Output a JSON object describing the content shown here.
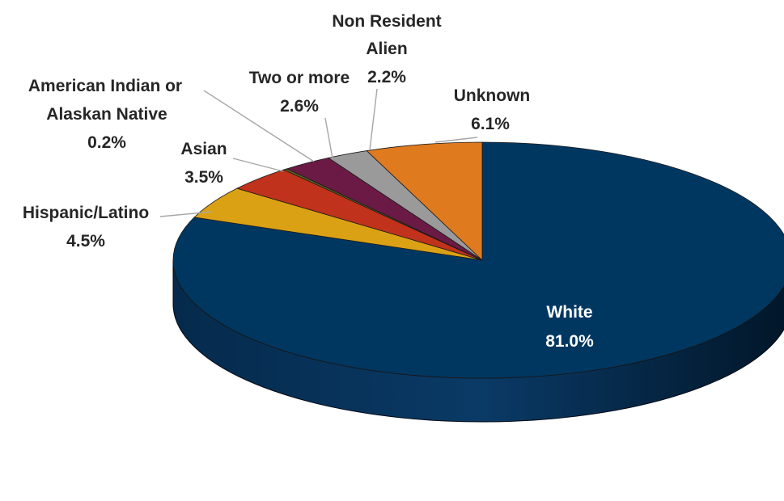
{
  "chart_data": {
    "type": "pie",
    "style": "3d",
    "start": "12 o'clock",
    "direction": "clockwise",
    "slices": [
      {
        "name": "White",
        "value": 81.0,
        "label": "White",
        "value_label": "81.0%",
        "color": "#003761"
      },
      {
        "name": "Hispanic/Latino",
        "value": 4.5,
        "label": "Hispanic/Latino",
        "value_label": "4.5%",
        "color": "#DBA114"
      },
      {
        "name": "Asian",
        "value": 3.5,
        "label": "Asian",
        "value_label": "3.5%",
        "color": "#C0321B"
      },
      {
        "name": "American Indian or Alaskan Native",
        "value": 0.2,
        "label": "American Indian or Alaskan Native",
        "label_lines": [
          "American Indian or",
          "Alaskan Native"
        ],
        "value_label": "0.2%",
        "color": "#5A6B1E"
      },
      {
        "name": "Two or more",
        "value": 2.6,
        "label": "Two or more",
        "value_label": "2.6%",
        "color": "#6B1A46"
      },
      {
        "name": "Non Resident Alien",
        "value": 2.2,
        "label": "Non Resident Alien",
        "label_lines": [
          "Non Resident",
          "Alien"
        ],
        "value_label": "2.2%",
        "color": "#9A9A9A"
      },
      {
        "name": "Unknown",
        "value": 6.1,
        "label": "Unknown",
        "value_label": "6.1%",
        "color": "#E07A1E"
      }
    ]
  }
}
